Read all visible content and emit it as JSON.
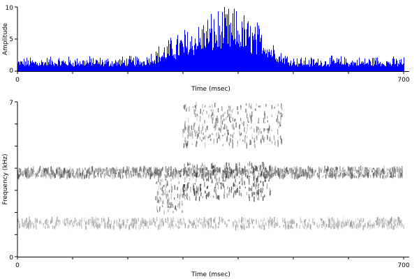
{
  "chart_data": [
    {
      "type": "area",
      "panel": "waveform-envelope",
      "xlabel": "Time (msec)",
      "ylabel": "Amplitude",
      "xlim": [
        0,
        700
      ],
      "ylim": [
        0,
        10
      ],
      "x_tick_labels": [
        "0",
        "700"
      ],
      "y_ticks": [
        0,
        5,
        10
      ],
      "y_tick_labels": [
        "0",
        "5",
        "10"
      ],
      "color": "#0000ff",
      "series": [
        {
          "x": [
            0,
            25,
            50,
            75,
            100,
            125,
            150,
            175,
            200,
            225,
            250,
            275,
            300,
            325,
            350,
            375,
            400,
            425,
            450,
            475,
            500,
            525,
            550,
            575,
            600,
            625,
            650,
            675,
            700
          ],
          "values": [
            1.4,
            1.5,
            1.5,
            1.6,
            1.5,
            1.6,
            1.5,
            1.5,
            1.6,
            1.6,
            2.5,
            3.5,
            4.5,
            5.3,
            6.3,
            6.8,
            6.5,
            5.5,
            4.5,
            2.4,
            1.6,
            1.5,
            1.5,
            1.6,
            1.5,
            1.5,
            1.6,
            1.5,
            1.5
          ]
        }
      ]
    },
    {
      "type": "heatmap",
      "panel": "spectrogram",
      "xlabel": "Time (msec)",
      "ylabel": "Frequency (kHz)",
      "xlim": [
        0,
        700
      ],
      "ylim": [
        0,
        7
      ],
      "x_tick_labels": [
        "0",
        "700"
      ],
      "y_ticks": [
        0,
        7
      ],
      "y_tick_labels": [
        "0",
        "7"
      ],
      "colormap": "grayscale",
      "bands": [
        {
          "t0": 0,
          "t1": 700,
          "f0": 3.6,
          "f1": 4.0,
          "intensity": 0.75
        },
        {
          "t0": 0,
          "t1": 700,
          "f0": 1.3,
          "f1": 1.7,
          "intensity": 0.45
        },
        {
          "t0": 300,
          "t1": 480,
          "f0": 5.0,
          "f1": 6.9,
          "intensity": 0.7
        },
        {
          "t0": 300,
          "t1": 460,
          "f0": 2.6,
          "f1": 4.2,
          "intensity": 0.9
        },
        {
          "t0": 250,
          "t1": 300,
          "f0": 2.0,
          "f1": 3.5,
          "intensity": 0.7
        }
      ]
    }
  ]
}
